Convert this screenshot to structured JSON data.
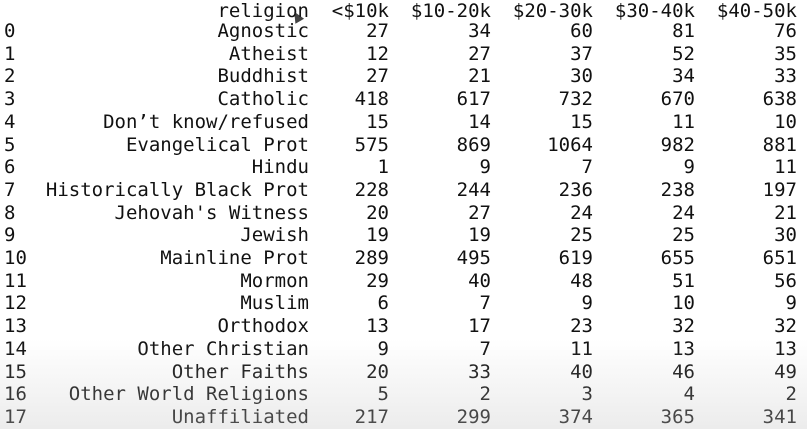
{
  "table": {
    "headers": [
      "religion",
      "<$10k",
      "$10-20k",
      "$20-30k",
      "$30-40k",
      "$40-50k"
    ],
    "rows": [
      {
        "index": "0",
        "religion": "Agnostic",
        "lt10k": "27",
        "k10_20": "34",
        "k20_30": "60",
        "k30_40": "81",
        "k40_50": "76"
      },
      {
        "index": "1",
        "religion": "Atheist",
        "lt10k": "12",
        "k10_20": "27",
        "k20_30": "37",
        "k30_40": "52",
        "k40_50": "35"
      },
      {
        "index": "2",
        "religion": "Buddhist",
        "lt10k": "27",
        "k10_20": "21",
        "k20_30": "30",
        "k30_40": "34",
        "k40_50": "33"
      },
      {
        "index": "3",
        "religion": "Catholic",
        "lt10k": "418",
        "k10_20": "617",
        "k20_30": "732",
        "k30_40": "670",
        "k40_50": "638"
      },
      {
        "index": "4",
        "religion": "Don’t know/refused",
        "lt10k": "15",
        "k10_20": "14",
        "k20_30": "15",
        "k30_40": "11",
        "k40_50": "10"
      },
      {
        "index": "5",
        "religion": "Evangelical Prot",
        "lt10k": "575",
        "k10_20": "869",
        "k20_30": "1064",
        "k30_40": "982",
        "k40_50": "881"
      },
      {
        "index": "6",
        "religion": "Hindu",
        "lt10k": "1",
        "k10_20": "9",
        "k20_30": "7",
        "k30_40": "9",
        "k40_50": "11"
      },
      {
        "index": "7",
        "religion": "Historically Black Prot",
        "lt10k": "228",
        "k10_20": "244",
        "k20_30": "236",
        "k30_40": "238",
        "k40_50": "197"
      },
      {
        "index": "8",
        "religion": "Jehovah's Witness",
        "lt10k": "20",
        "k10_20": "27",
        "k20_30": "24",
        "k30_40": "24",
        "k40_50": "21"
      },
      {
        "index": "9",
        "religion": "Jewish",
        "lt10k": "19",
        "k10_20": "19",
        "k20_30": "25",
        "k30_40": "25",
        "k40_50": "30"
      },
      {
        "index": "10",
        "religion": "Mainline Prot",
        "lt10k": "289",
        "k10_20": "495",
        "k20_30": "619",
        "k30_40": "655",
        "k40_50": "651"
      },
      {
        "index": "11",
        "religion": "Mormon",
        "lt10k": "29",
        "k10_20": "40",
        "k20_30": "48",
        "k30_40": "51",
        "k40_50": "56"
      },
      {
        "index": "12",
        "religion": "Muslim",
        "lt10k": "6",
        "k10_20": "7",
        "k20_30": "9",
        "k30_40": "10",
        "k40_50": "9"
      },
      {
        "index": "13",
        "religion": "Orthodox",
        "lt10k": "13",
        "k10_20": "17",
        "k20_30": "23",
        "k30_40": "32",
        "k40_50": "32"
      },
      {
        "index": "14",
        "religion": "Other Christian",
        "lt10k": "9",
        "k10_20": "7",
        "k20_30": "11",
        "k30_40": "13",
        "k40_50": "13"
      },
      {
        "index": "15",
        "religion": "Other Faiths",
        "lt10k": "20",
        "k10_20": "33",
        "k20_30": "40",
        "k30_40": "46",
        "k40_50": "49"
      },
      {
        "index": "16",
        "religion": "Other World Religions",
        "lt10k": "5",
        "k10_20": "2",
        "k20_30": "3",
        "k30_40": "4",
        "k40_50": "2"
      },
      {
        "index": "17",
        "religion": "Unaffiliated",
        "lt10k": "217",
        "k10_20": "299",
        "k20_30": "374",
        "k30_40": "365",
        "k40_50": "341"
      }
    ]
  },
  "cursor_icon": "mouse-pointer-icon"
}
